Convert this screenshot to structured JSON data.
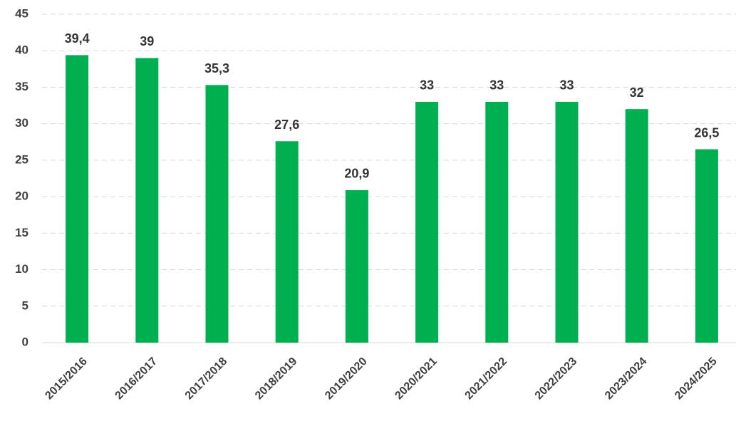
{
  "chart_data": {
    "type": "bar",
    "categories": [
      "2015/2016",
      "2016/2017",
      "2017/2018",
      "2018/2019",
      "2019/2020",
      "2020/2021",
      "2021/2022",
      "2022/2023",
      "2023/2024",
      "2024/2025"
    ],
    "values": [
      39.4,
      39,
      35.3,
      27.6,
      20.9,
      33,
      33,
      33,
      32,
      26.5
    ],
    "value_labels": [
      "39,4",
      "39",
      "35,3",
      "27,6",
      "20,9",
      "33",
      "33",
      "33",
      "32",
      "26,5"
    ],
    "color": "#00b050",
    "ylim": [
      0,
      45
    ],
    "yticks": [
      0,
      5,
      10,
      15,
      20,
      25,
      30,
      35,
      40,
      45
    ],
    "grid": true
  }
}
